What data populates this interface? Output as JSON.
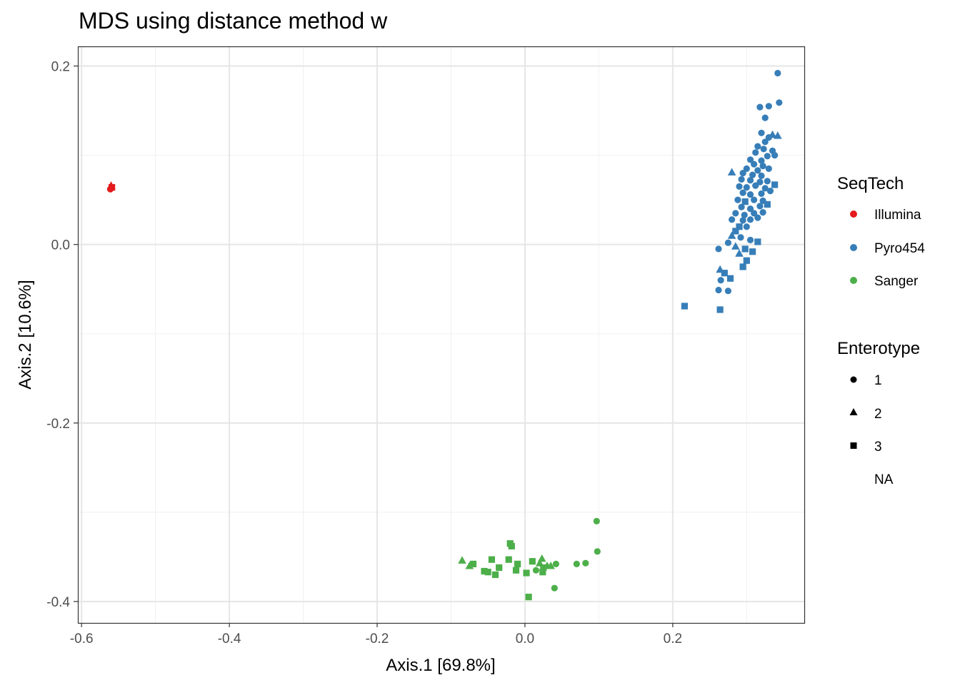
{
  "chart_data": {
    "type": "scatter",
    "title": "MDS using distance method w",
    "xlabel": "Axis.1   [69.8%]",
    "ylabel": "Axis.2   [10.6%]",
    "xlim": [
      -0.605,
      0.378
    ],
    "ylim": [
      -0.424,
      0.222
    ],
    "xticks": [
      -0.6,
      -0.4,
      -0.2,
      0.0,
      0.2
    ],
    "xtick_labels": [
      "-0.6",
      "-0.4",
      "-0.2",
      "0.0",
      "0.2"
    ],
    "yticks": [
      0.2,
      0.0,
      -0.2,
      -0.4
    ],
    "ytick_labels": [
      "0.2",
      "0.0",
      "-0.2",
      "-0.4"
    ],
    "grid": true,
    "legend_position": "right",
    "legends": {
      "color": {
        "title": "SeqTech",
        "entries": [
          {
            "label": "Illumina",
            "color": "#e41a1c"
          },
          {
            "label": "Pyro454",
            "color": "#377eb8"
          },
          {
            "label": "Sanger",
            "color": "#4daf4a"
          }
        ]
      },
      "shape": {
        "title": "Enterotype",
        "entries": [
          {
            "label": "1",
            "shape": "circle"
          },
          {
            "label": "2",
            "shape": "triangle"
          },
          {
            "label": "3",
            "shape": "square"
          },
          {
            "label": "NA",
            "shape": "none"
          }
        ]
      }
    },
    "series": [
      {
        "name": "Illumina",
        "color": "#e41a1c",
        "points": [
          [
            -0.56,
            0.065,
            "triangle"
          ],
          [
            -0.56,
            0.063,
            "circle"
          ],
          [
            -0.559,
            0.064,
            "square"
          ],
          [
            -0.561,
            0.062,
            "circle"
          ],
          [
            -0.56,
            0.066,
            "triangle"
          ]
        ]
      },
      {
        "name": "Pyro454",
        "color": "#377eb8",
        "points": [
          [
            0.342,
            0.192,
            "circle"
          ],
          [
            0.344,
            0.159,
            "circle"
          ],
          [
            0.33,
            0.155,
            "circle"
          ],
          [
            0.318,
            0.154,
            "circle"
          ],
          [
            0.325,
            0.142,
            "circle"
          ],
          [
            0.32,
            0.125,
            "circle"
          ],
          [
            0.33,
            0.12,
            "circle"
          ],
          [
            0.335,
            0.123,
            "triangle"
          ],
          [
            0.342,
            0.122,
            "triangle"
          ],
          [
            0.325,
            0.115,
            "circle"
          ],
          [
            0.315,
            0.11,
            "circle"
          ],
          [
            0.323,
            0.107,
            "circle"
          ],
          [
            0.335,
            0.105,
            "circle"
          ],
          [
            0.312,
            0.103,
            "circle"
          ],
          [
            0.328,
            0.099,
            "circle"
          ],
          [
            0.338,
            0.1,
            "circle"
          ],
          [
            0.305,
            0.095,
            "circle"
          ],
          [
            0.32,
            0.094,
            "circle"
          ],
          [
            0.31,
            0.09,
            "circle"
          ],
          [
            0.322,
            0.088,
            "circle"
          ],
          [
            0.3,
            0.085,
            "circle"
          ],
          [
            0.315,
            0.083,
            "circle"
          ],
          [
            0.33,
            0.085,
            "circle"
          ],
          [
            0.295,
            0.08,
            "circle"
          ],
          [
            0.308,
            0.078,
            "circle"
          ],
          [
            0.32,
            0.077,
            "circle"
          ],
          [
            0.28,
            0.081,
            "triangle"
          ],
          [
            0.293,
            0.073,
            "circle"
          ],
          [
            0.305,
            0.072,
            "circle"
          ],
          [
            0.318,
            0.07,
            "circle"
          ],
          [
            0.328,
            0.071,
            "circle"
          ],
          [
            0.29,
            0.065,
            "circle"
          ],
          [
            0.3,
            0.064,
            "circle"
          ],
          [
            0.312,
            0.066,
            "circle"
          ],
          [
            0.325,
            0.063,
            "circle"
          ],
          [
            0.338,
            0.067,
            "square"
          ],
          [
            0.295,
            0.058,
            "circle"
          ],
          [
            0.305,
            0.056,
            "circle"
          ],
          [
            0.32,
            0.057,
            "circle"
          ],
          [
            0.332,
            0.06,
            "circle"
          ],
          [
            0.288,
            0.05,
            "circle"
          ],
          [
            0.298,
            0.048,
            "square"
          ],
          [
            0.31,
            0.05,
            "circle"
          ],
          [
            0.322,
            0.049,
            "circle"
          ],
          [
            0.293,
            0.042,
            "circle"
          ],
          [
            0.305,
            0.04,
            "circle"
          ],
          [
            0.318,
            0.043,
            "circle"
          ],
          [
            0.328,
            0.045,
            "square"
          ],
          [
            0.285,
            0.035,
            "circle"
          ],
          [
            0.297,
            0.033,
            "circle"
          ],
          [
            0.31,
            0.035,
            "circle"
          ],
          [
            0.322,
            0.036,
            "circle"
          ],
          [
            0.295,
            0.027,
            "circle"
          ],
          [
            0.305,
            0.028,
            "circle"
          ],
          [
            0.315,
            0.03,
            "circle"
          ],
          [
            0.28,
            0.028,
            "circle"
          ],
          [
            0.29,
            0.02,
            "square"
          ],
          [
            0.3,
            0.02,
            "circle"
          ],
          [
            0.285,
            0.015,
            "square"
          ],
          [
            0.28,
            0.01,
            "triangle"
          ],
          [
            0.292,
            0.008,
            "circle"
          ],
          [
            0.305,
            0.005,
            "circle"
          ],
          [
            0.315,
            0.003,
            "square"
          ],
          [
            0.275,
            0.002,
            "circle"
          ],
          [
            0.285,
            -0.002,
            "triangle"
          ],
          [
            0.298,
            -0.005,
            "square"
          ],
          [
            0.308,
            -0.008,
            "square"
          ],
          [
            0.29,
            -0.01,
            "triangle"
          ],
          [
            0.3,
            -0.018,
            "square"
          ],
          [
            0.295,
            -0.025,
            "square"
          ],
          [
            0.262,
            -0.005,
            "circle"
          ],
          [
            0.264,
            -0.028,
            "triangle"
          ],
          [
            0.27,
            -0.032,
            "square"
          ],
          [
            0.278,
            -0.038,
            "square"
          ],
          [
            0.265,
            -0.04,
            "circle"
          ],
          [
            0.262,
            -0.051,
            "circle"
          ],
          [
            0.275,
            -0.052,
            "circle"
          ],
          [
            0.216,
            -0.069,
            "square"
          ],
          [
            0.264,
            -0.073,
            "square"
          ]
        ]
      },
      {
        "name": "Sanger",
        "color": "#4daf4a",
        "points": [
          [
            0.097,
            -0.31,
            "circle"
          ],
          [
            0.098,
            -0.344,
            "circle"
          ],
          [
            0.082,
            -0.357,
            "circle"
          ],
          [
            0.07,
            -0.358,
            "circle"
          ],
          [
            0.04,
            -0.385,
            "circle"
          ],
          [
            0.042,
            -0.358,
            "circle"
          ],
          [
            0.03,
            -0.36,
            "triangle"
          ],
          [
            0.025,
            -0.362,
            "square"
          ],
          [
            0.023,
            -0.352,
            "triangle"
          ],
          [
            0.02,
            -0.357,
            "triangle"
          ],
          [
            0.024,
            -0.367,
            "square"
          ],
          [
            0.01,
            -0.355,
            "square"
          ],
          [
            0.005,
            -0.395,
            "square"
          ],
          [
            0.002,
            -0.368,
            "square"
          ],
          [
            -0.01,
            -0.358,
            "square"
          ],
          [
            -0.012,
            -0.365,
            "square"
          ],
          [
            -0.02,
            -0.335,
            "square"
          ],
          [
            -0.018,
            -0.338,
            "square"
          ],
          [
            -0.022,
            -0.353,
            "square"
          ],
          [
            -0.035,
            -0.362,
            "square"
          ],
          [
            -0.045,
            -0.353,
            "square"
          ],
          [
            -0.04,
            -0.37,
            "square"
          ],
          [
            -0.05,
            -0.367,
            "square"
          ],
          [
            -0.055,
            -0.366,
            "square"
          ],
          [
            -0.07,
            -0.358,
            "square"
          ],
          [
            -0.075,
            -0.36,
            "triangle"
          ],
          [
            -0.085,
            -0.354,
            "triangle"
          ],
          [
            0.035,
            -0.36,
            "triangle"
          ],
          [
            0.015,
            -0.365,
            "circle"
          ]
        ]
      }
    ]
  }
}
